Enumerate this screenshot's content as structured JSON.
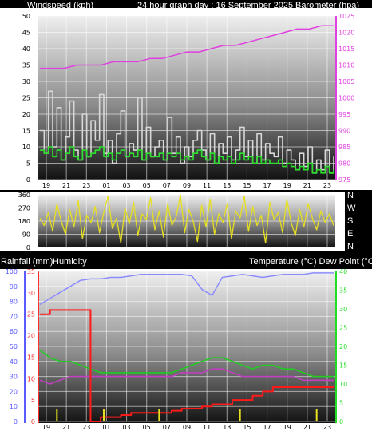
{
  "colors": {
    "windspeed": "#d8d8d8",
    "windavg": "#2ee02e",
    "barometer": "#e040e0",
    "direction": "#e6e020",
    "rainfall": "#ff1a1a",
    "humidity": "#8c8cff",
    "temperature": "#22cc22",
    "dewpoint": "#c040c0",
    "axis_left_blue": "#5a5aff",
    "axis_left_red": "#ff2a2a",
    "axis_right_green": "#22dd22",
    "axis_right_magenta": "#e040e0"
  },
  "headers": {
    "top_left": "Windspeed (kph)",
    "top_center": "24 hour graph day : 16 September 2025",
    "top_right": "Barometer (hpa)",
    "bot_left1": "Rainfall (mm)",
    "bot_left2": "Humidity",
    "bot_right": "Temperature (°C) Dew Point (°C)"
  },
  "directions": [
    "N",
    "W",
    "S",
    "E",
    "N"
  ],
  "chart_data": [
    {
      "type": "line",
      "title": "24 hour graph day : 16 September 2025",
      "x_ticks": [
        "19",
        "21",
        "23",
        "01",
        "03",
        "05",
        "07",
        "09",
        "11",
        "13",
        "15",
        "17",
        "19",
        "21",
        "23"
      ],
      "y_left": {
        "label": "Windspeed (kph)",
        "ticks": [
          0,
          5,
          10,
          15,
          20,
          25,
          30,
          35,
          40,
          45,
          50
        ],
        "range": [
          0,
          50
        ]
      },
      "y_right": {
        "label": "Barometer (hpa)",
        "ticks": [
          975,
          980,
          985,
          990,
          995,
          1000,
          1005,
          1010,
          1015,
          1020,
          1025
        ],
        "range": [
          975,
          1025
        ]
      },
      "series": [
        {
          "name": "Windspeed (kph)",
          "values": [
            15,
            8,
            27,
            10,
            22,
            6,
            13,
            24,
            9,
            6,
            20,
            7,
            18,
            12,
            26,
            8,
            12,
            5,
            14,
            21,
            7,
            11,
            9,
            25,
            6,
            16,
            7,
            10,
            12,
            6,
            19,
            8,
            13,
            5,
            10,
            7,
            12,
            15,
            9,
            6,
            14,
            5,
            11,
            8,
            13,
            6,
            9,
            16,
            7,
            12,
            5,
            14,
            6,
            11,
            8,
            7,
            13,
            5,
            9,
            6,
            3,
            8,
            4,
            10,
            2,
            6,
            3,
            9,
            2,
            7
          ]
        },
        {
          "name": "Wind average",
          "values": [
            9,
            8,
            10,
            7,
            9,
            6,
            8,
            10,
            7,
            6,
            9,
            7,
            8,
            9,
            10,
            7,
            8,
            6,
            8,
            9,
            7,
            8,
            7,
            9,
            6,
            8,
            7,
            7,
            8,
            6,
            8,
            7,
            8,
            6,
            7,
            6,
            8,
            9,
            7,
            6,
            8,
            5,
            7,
            6,
            7,
            5,
            6,
            8,
            6,
            7,
            5,
            7,
            5,
            6,
            5,
            5,
            6,
            4,
            5,
            4,
            3,
            4,
            3,
            5,
            2,
            3,
            2,
            4,
            2,
            3
          ]
        },
        {
          "name": "Barometer (hpa)",
          "values": [
            1009,
            1009,
            1009,
            1010,
            1010,
            1010,
            1011,
            1011,
            1011,
            1012,
            1012,
            1013,
            1014,
            1014,
            1015,
            1016,
            1016,
            1017,
            1018,
            1019,
            1020,
            1021,
            1021,
            1022,
            1022
          ]
        }
      ]
    },
    {
      "type": "line",
      "x_ticks": [
        "19",
        "21",
        "23",
        "01",
        "03",
        "05",
        "07",
        "09",
        "11",
        "13",
        "15",
        "17",
        "19",
        "21",
        "23"
      ],
      "y_left": {
        "ticks": [
          0,
          90,
          180,
          270,
          360
        ],
        "range": [
          0,
          360
        ]
      },
      "y_right": {
        "ticks": [
          "N",
          "W",
          "S",
          "E",
          "N"
        ]
      },
      "series": [
        {
          "name": "Wind direction",
          "values": [
            200,
            150,
            240,
            110,
            300,
            180,
            90,
            260,
            140,
            320,
            60,
            220,
            170,
            280,
            100,
            240,
            350,
            130,
            200,
            30,
            270,
            160,
            310,
            80,
            230,
            190,
            340,
            120,
            250,
            70,
            300,
            150,
            210,
            360,
            100,
            260,
            180,
            40,
            290,
            140,
            330,
            90,
            230,
            170,
            300,
            60,
            250,
            200,
            350,
            110,
            280,
            150,
            220,
            30,
            310,
            190,
            240,
            100,
            330,
            170,
            80,
            260,
            140,
            300,
            200,
            120,
            250,
            170,
            230,
            150
          ]
        }
      ]
    },
    {
      "type": "line",
      "x_ticks": [
        "19",
        "21",
        "23",
        "01",
        "03",
        "05",
        "07",
        "09",
        "11",
        "13",
        "15",
        "17",
        "19",
        "21",
        "23"
      ],
      "y_left_humidity": {
        "label": "Humidity",
        "ticks": [
          0,
          10,
          20,
          30,
          40,
          50,
          60,
          70,
          80,
          90,
          100
        ],
        "range": [
          0,
          100
        ]
      },
      "y_left_rain": {
        "label": "Rainfall (mm)",
        "ticks": [
          0,
          5,
          10,
          15,
          20,
          25,
          30,
          35
        ],
        "range": [
          0,
          35
        ]
      },
      "y_right": {
        "label": "Temperature (°C) Dew Point (°C)",
        "ticks": [
          0,
          5,
          10,
          15,
          20,
          25,
          30,
          35,
          40
        ],
        "range": [
          0,
          40
        ]
      },
      "series": [
        {
          "name": "Humidity",
          "values": [
            78,
            82,
            86,
            90,
            94,
            95,
            95,
            96,
            96,
            97,
            98,
            98,
            98,
            98,
            98,
            97,
            88,
            84,
            96,
            97,
            98,
            97,
            96,
            97,
            98,
            98,
            98,
            99,
            99,
            99
          ]
        },
        {
          "name": "Rainfall (mm)",
          "values": [
            25,
            26,
            26,
            26,
            26,
            0,
            1,
            1,
            1.5,
            2,
            2,
            2,
            2,
            2.5,
            3,
            3,
            3.5,
            4,
            4,
            5,
            5,
            6,
            7,
            8,
            8,
            8,
            8,
            8,
            8,
            8
          ]
        },
        {
          "name": "Temperature (°C)",
          "values": [
            19,
            17,
            16,
            16,
            15,
            14,
            13,
            13,
            13,
            13,
            13,
            13,
            13,
            13,
            14,
            15,
            16,
            17,
            17,
            16,
            15,
            14,
            15,
            15,
            14,
            14,
            13,
            12,
            12,
            12
          ]
        },
        {
          "name": "Dew Point (°C)",
          "values": [
            11,
            10,
            11,
            12,
            12,
            12,
            12,
            12,
            12,
            12,
            12,
            12,
            12,
            12,
            13,
            13,
            13,
            14,
            14,
            13,
            12,
            12,
            12,
            12,
            12,
            12,
            11,
            11,
            11,
            11
          ]
        }
      ],
      "rain_bars_x_index": [
        4,
        15,
        28,
        47,
        65
      ]
    }
  ]
}
